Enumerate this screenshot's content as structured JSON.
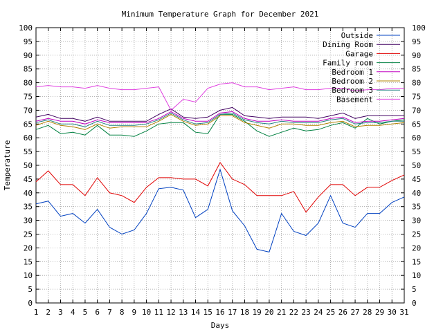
{
  "chart_data": {
    "type": "line",
    "title": "Minimum Temperature Graph for December 2021",
    "xlabel": "Days",
    "ylabel": "Temperature",
    "xlim": [
      1,
      31
    ],
    "ylim": [
      0,
      100
    ],
    "x_ticks": [
      1,
      2,
      3,
      4,
      5,
      6,
      7,
      8,
      9,
      10,
      11,
      12,
      13,
      14,
      15,
      16,
      17,
      18,
      19,
      20,
      21,
      22,
      23,
      24,
      25,
      26,
      27,
      28,
      29,
      30,
      31
    ],
    "y_ticks": [
      0,
      5,
      10,
      15,
      20,
      25,
      30,
      35,
      40,
      45,
      50,
      55,
      60,
      65,
      70,
      75,
      80,
      85,
      90,
      95,
      100
    ],
    "grid": true,
    "legend_position": "top-right",
    "x": [
      1,
      2,
      3,
      4,
      5,
      6,
      7,
      8,
      9,
      10,
      11,
      12,
      13,
      14,
      15,
      16,
      17,
      18,
      19,
      20,
      21,
      22,
      23,
      24,
      25,
      26,
      27,
      28,
      29,
      30,
      31
    ],
    "series": [
      {
        "name": "Outside",
        "color": "#0040c0",
        "values": [
          36.0,
          37.0,
          31.5,
          32.5,
          29.0,
          34.0,
          27.5,
          25.0,
          26.5,
          32.5,
          41.5,
          42.0,
          41.0,
          31.0,
          34.0,
          48.5,
          33.5,
          28.0,
          19.5,
          18.5,
          32.5,
          26.0,
          24.5,
          29.0,
          39.0,
          29.0,
          27.5,
          32.5,
          32.5,
          36.5,
          38.5
        ]
      },
      {
        "name": "Dining Room",
        "color": "#400060",
        "values": [
          67.5,
          68.5,
          67.0,
          67.0,
          66.0,
          67.5,
          66.0,
          66.0,
          66.0,
          66.0,
          68.5,
          70.5,
          67.5,
          67.0,
          67.5,
          70.0,
          71.0,
          68.0,
          67.5,
          67.0,
          67.5,
          67.5,
          67.5,
          67.0,
          68.0,
          69.0,
          67.0,
          68.0,
          68.0,
          68.0,
          68.0
        ]
      },
      {
        "name": "Garage",
        "color": "#e00000",
        "values": [
          44.0,
          48.0,
          43.0,
          43.0,
          39.0,
          45.5,
          40.0,
          39.0,
          36.5,
          42.0,
          45.5,
          45.5,
          45.0,
          45.0,
          42.5,
          51.0,
          45.0,
          43.0,
          39.0,
          39.0,
          39.0,
          40.5,
          33.0,
          38.5,
          43.0,
          43.0,
          39.0,
          42.0,
          42.0,
          44.5,
          46.5
        ]
      },
      {
        "name": "Family room",
        "color": "#008040",
        "values": [
          63.0,
          64.5,
          61.5,
          62.0,
          61.0,
          64.5,
          61.0,
          61.0,
          60.5,
          62.5,
          65.0,
          65.5,
          65.5,
          62.0,
          61.5,
          68.5,
          68.5,
          66.0,
          62.5,
          60.5,
          62.0,
          63.5,
          62.5,
          63.0,
          64.5,
          65.5,
          63.5,
          67.0,
          65.0,
          66.0,
          66.5
        ]
      },
      {
        "name": "Bedroom 1",
        "color": "#c000c0",
        "values": [
          66.0,
          67.0,
          66.0,
          66.0,
          65.0,
          66.5,
          65.5,
          65.5,
          65.5,
          65.5,
          67.0,
          69.5,
          67.0,
          66.0,
          66.0,
          69.0,
          69.5,
          67.0,
          66.0,
          66.0,
          66.5,
          66.0,
          66.0,
          66.0,
          67.0,
          67.5,
          65.5,
          66.0,
          66.0,
          66.5,
          67.0
        ]
      },
      {
        "name": "Bedroom 2",
        "color": "#b08000",
        "values": [
          64.5,
          66.0,
          64.5,
          64.0,
          63.0,
          65.0,
          63.5,
          64.0,
          64.0,
          64.0,
          66.0,
          68.5,
          66.0,
          64.5,
          65.0,
          68.0,
          68.0,
          65.5,
          64.5,
          63.5,
          65.0,
          65.0,
          64.5,
          64.5,
          65.5,
          66.0,
          64.0,
          64.5,
          64.5,
          65.0,
          65.5
        ]
      },
      {
        "name": "Bedroom 3",
        "color": "#208080",
        "values": [
          65.5,
          66.5,
          65.0,
          65.0,
          64.0,
          66.0,
          64.5,
          64.5,
          64.5,
          65.0,
          66.5,
          69.0,
          66.5,
          65.0,
          65.5,
          68.5,
          69.0,
          66.5,
          65.5,
          65.0,
          66.0,
          65.5,
          65.5,
          65.5,
          66.5,
          67.0,
          65.0,
          65.5,
          65.5,
          66.0,
          66.0
        ]
      },
      {
        "name": "Basement",
        "color": "#e040e0",
        "values": [
          78.5,
          79.0,
          78.5,
          78.5,
          78.0,
          79.0,
          78.0,
          77.5,
          77.5,
          78.0,
          78.5,
          70.0,
          74.0,
          73.0,
          78.0,
          79.5,
          80.0,
          78.5,
          78.5,
          77.5,
          78.0,
          78.5,
          77.5,
          77.5,
          78.0,
          78.0,
          77.0,
          77.5,
          77.5,
          78.0,
          78.0
        ]
      }
    ]
  }
}
